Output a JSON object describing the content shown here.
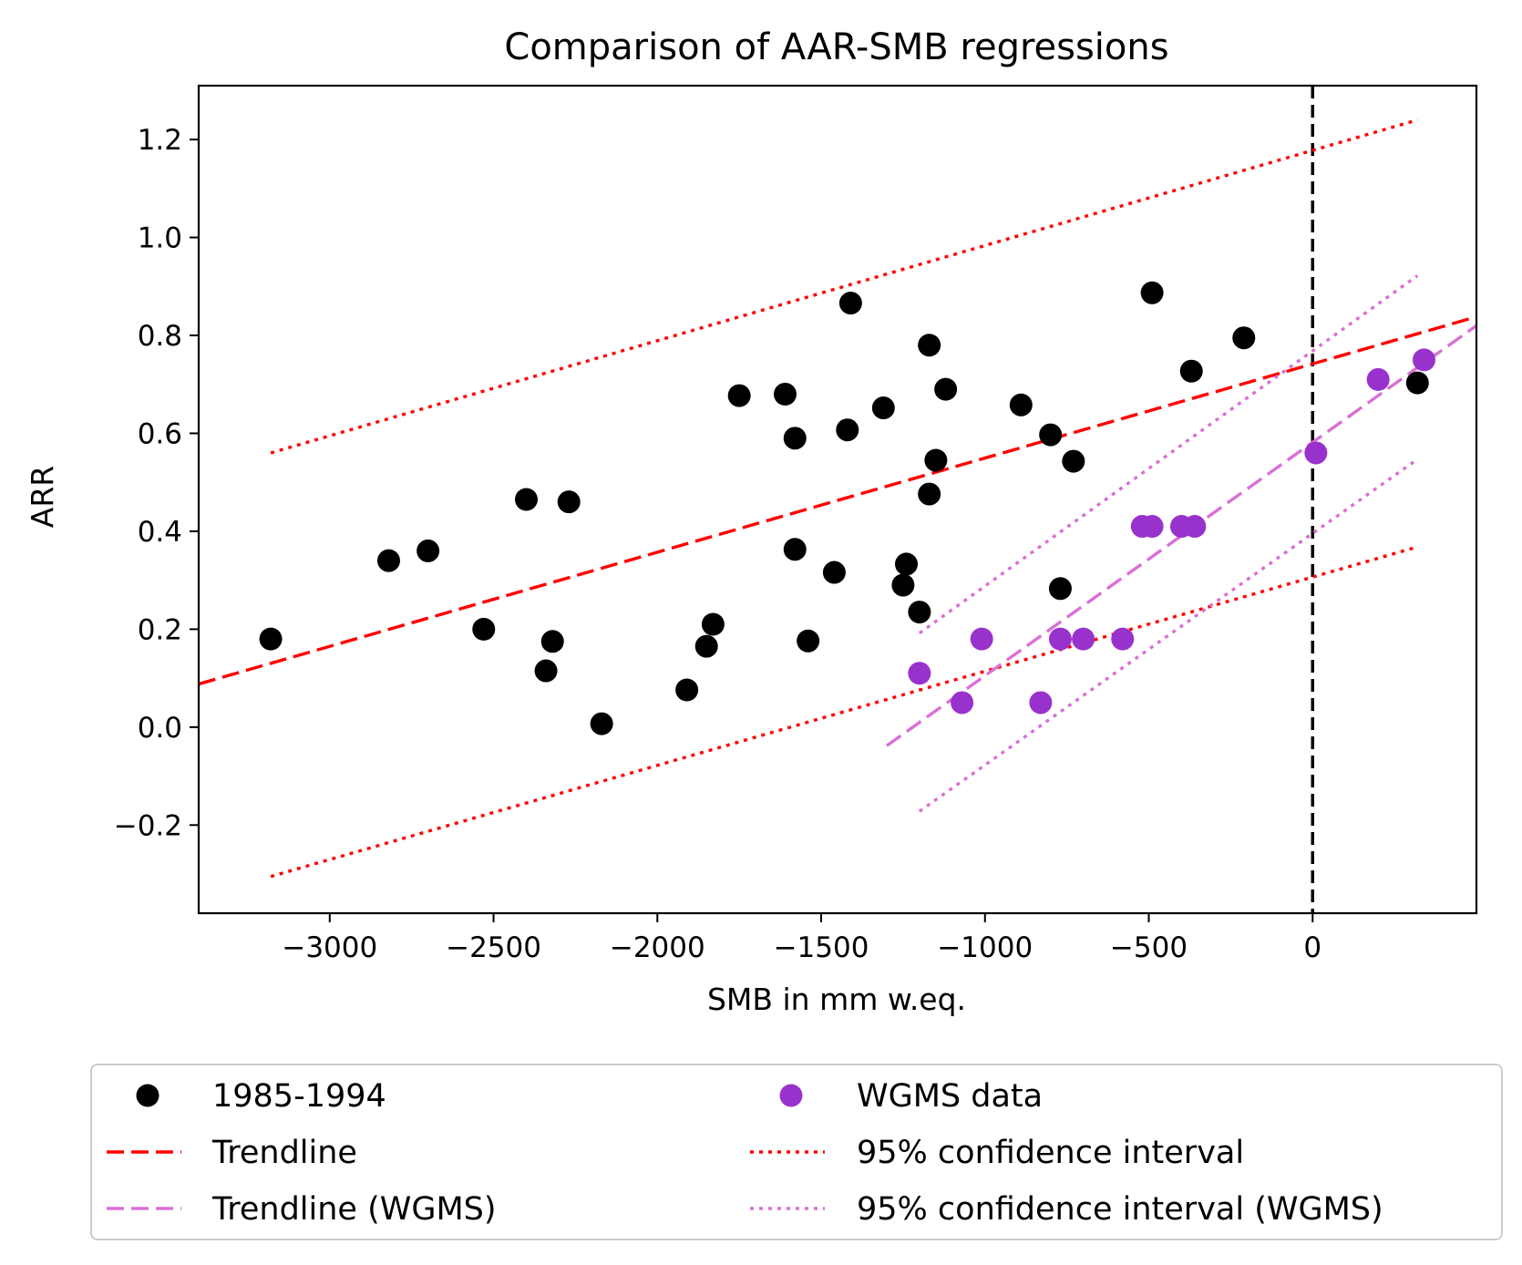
{
  "chart_data": {
    "type": "scatter",
    "title": "Comparison of AAR-SMB regressions",
    "xlabel": "SMB in mm w.eq.",
    "ylabel": "ARR",
    "xlim": [
      -3400,
      500
    ],
    "ylim": [
      -0.38,
      1.31
    ],
    "xticks": [
      -3000,
      -2500,
      -2000,
      -1500,
      -1000,
      -500,
      0
    ],
    "xtick_labels": [
      "−3000",
      "−2500",
      "−2000",
      "−1500",
      "−1000",
      "−500",
      "0"
    ],
    "yticks": [
      -0.2,
      0.0,
      0.2,
      0.4,
      0.6,
      0.8,
      1.0,
      1.2
    ],
    "ytick_labels": [
      "−0.2",
      "0.0",
      "0.2",
      "0.4",
      "0.6",
      "0.8",
      "1.0",
      "1.2"
    ],
    "grid": false,
    "legend_position": "below",
    "vline_x": 0,
    "colors": {
      "black": "#000000",
      "red": "#ff0000",
      "purple": "#9932cc",
      "orchid": "#da70d6"
    },
    "series": [
      {
        "name": "1985-1994",
        "kind": "scatter",
        "color": "#000000",
        "points": [
          [
            -3180,
            0.18
          ],
          [
            -2820,
            0.34
          ],
          [
            -2700,
            0.36
          ],
          [
            -2530,
            0.2
          ],
          [
            -2400,
            0.465
          ],
          [
            -2340,
            0.115
          ],
          [
            -2320,
            0.175
          ],
          [
            -2270,
            0.46
          ],
          [
            -2170,
            0.007
          ],
          [
            -1910,
            0.076
          ],
          [
            -1850,
            0.165
          ],
          [
            -1830,
            0.21
          ],
          [
            -1750,
            0.677
          ],
          [
            -1610,
            0.68
          ],
          [
            -1580,
            0.59
          ],
          [
            -1580,
            0.363
          ],
          [
            -1540,
            0.176
          ],
          [
            -1460,
            0.316
          ],
          [
            -1420,
            0.607
          ],
          [
            -1410,
            0.866
          ],
          [
            -1310,
            0.652
          ],
          [
            -1250,
            0.29
          ],
          [
            -1240,
            0.333
          ],
          [
            -1200,
            0.235
          ],
          [
            -1170,
            0.78
          ],
          [
            -1170,
            0.476
          ],
          [
            -1150,
            0.545
          ],
          [
            -1120,
            0.69
          ],
          [
            -890,
            0.658
          ],
          [
            -800,
            0.597
          ],
          [
            -770,
            0.283
          ],
          [
            -730,
            0.543
          ],
          [
            -490,
            0.887
          ],
          [
            -370,
            0.727
          ],
          [
            -210,
            0.795
          ],
          [
            320,
            0.703
          ]
        ]
      },
      {
        "name": "WGMS data",
        "kind": "scatter",
        "color": "#9932cc",
        "points": [
          [
            -1200,
            0.11
          ],
          [
            -1070,
            0.05
          ],
          [
            -1010,
            0.18
          ],
          [
            -830,
            0.05
          ],
          [
            -770,
            0.18
          ],
          [
            -700,
            0.18
          ],
          [
            -580,
            0.18
          ],
          [
            -520,
            0.41
          ],
          [
            -490,
            0.41
          ],
          [
            -400,
            0.41
          ],
          [
            -360,
            0.41
          ],
          [
            10,
            0.56
          ],
          [
            200,
            0.71
          ],
          [
            340,
            0.75
          ]
        ]
      },
      {
        "name": "Trendline",
        "kind": "dashed-line",
        "color": "#ff0000",
        "points": [
          [
            -3400,
            0.088
          ],
          [
            500,
            0.838
          ]
        ]
      },
      {
        "name": "95% confidence interval",
        "kind": "dotted-line",
        "color": "#ff0000",
        "points": [
          [
            -3180,
            0.56
          ],
          [
            320,
            1.24
          ]
        ],
        "points_lower": [
          [
            -3180,
            -0.305
          ],
          [
            320,
            0.368
          ]
        ]
      },
      {
        "name": "Trendline (WGMS)",
        "kind": "dashed-line",
        "color": "#da70d6",
        "points": [
          [
            -1300,
            -0.038
          ],
          [
            500,
            0.82
          ]
        ]
      },
      {
        "name": "95% confidence interval (WGMS)",
        "kind": "dotted-line",
        "color": "#da70d6",
        "points": [
          [
            -1200,
            0.192
          ],
          [
            320,
            0.922
          ]
        ],
        "points_lower": [
          [
            -1200,
            -0.172
          ],
          [
            320,
            0.547
          ]
        ]
      }
    ]
  }
}
